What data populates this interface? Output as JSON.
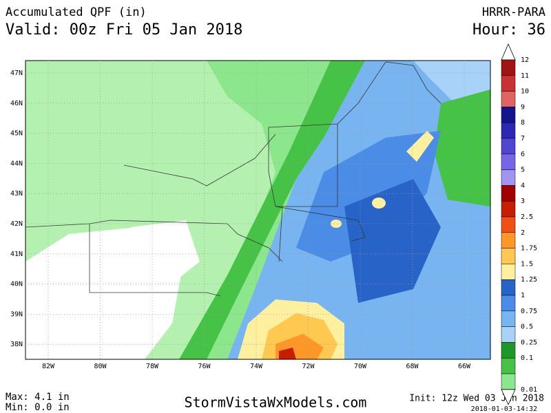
{
  "header": {
    "title": "Accumulated QPF (in)",
    "valid": "Valid: 00z Fri 05 Jan 2018",
    "model": "HRRR-PARA",
    "hour": "Hour: 36"
  },
  "map": {
    "lat_labels": [
      "47N",
      "46N",
      "45N",
      "44N",
      "43N",
      "42N",
      "41N",
      "40N",
      "39N",
      "38N"
    ],
    "lon_labels": [
      "82W",
      "80W",
      "78W",
      "76W",
      "74W",
      "72W",
      "70W",
      "68W",
      "66W"
    ]
  },
  "colorbar": [
    {
      "label": "12",
      "color": "#a01414"
    },
    {
      "label": "11",
      "color": "#c83232"
    },
    {
      "label": "10",
      "color": "#e06464"
    },
    {
      "label": "9",
      "color": "#14148c"
    },
    {
      "label": "8",
      "color": "#2c28b4"
    },
    {
      "label": "7",
      "color": "#5046d2"
    },
    {
      "label": "6",
      "color": "#7864e6"
    },
    {
      "label": "5",
      "color": "#a096f0"
    },
    {
      "label": "4",
      "color": "#a00000"
    },
    {
      "label": "3",
      "color": "#c81e00"
    },
    {
      "label": "2.5",
      "color": "#f05014"
    },
    {
      "label": "2",
      "color": "#ff9628"
    },
    {
      "label": "1.75",
      "color": "#ffc850"
    },
    {
      "label": "1.5",
      "color": "#fff0a0"
    },
    {
      "label": "1.25",
      "color": "#2864c8"
    },
    {
      "label": "1",
      "color": "#4a8ce6"
    },
    {
      "label": "0.75",
      "color": "#78b4f0"
    },
    {
      "label": "0.5",
      "color": "#a8d2f8"
    },
    {
      "label": "0.25",
      "color": "#1e9628"
    },
    {
      "label": "0.1",
      "color": "#46c346"
    },
    {
      "label": "0.01",
      "color": "#8ce68c"
    }
  ],
  "footer": {
    "max": "Max: 4.1 in",
    "min": "Min: 0.0 in",
    "site": "StormVistaWxModels.com",
    "init": "Init: 12z Wed 03 Jan 2018",
    "stamp": "2018-01-03-14:32"
  }
}
